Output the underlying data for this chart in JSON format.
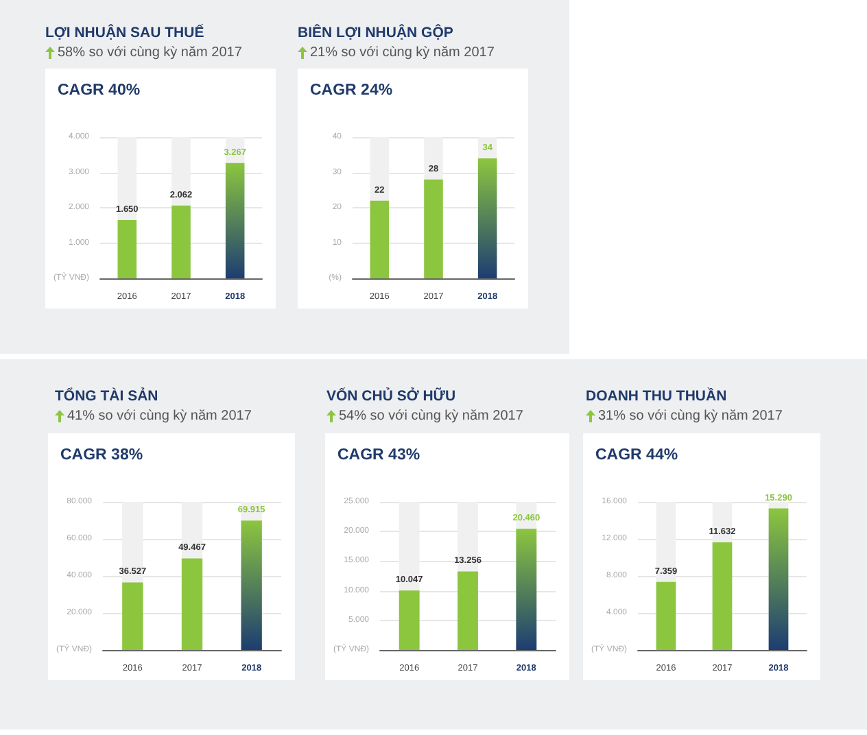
{
  "chart_data": [
    {
      "type": "bar",
      "title": "LỢI NHUẬN SAU THUẾ",
      "subtitle": "58% so với cùng kỳ năm 2017",
      "annotations": [
        "CAGR 40%"
      ],
      "categories": [
        "2016",
        "2017",
        "2018"
      ],
      "values": [
        1650,
        2062,
        3267
      ],
      "value_labels": [
        "1.650",
        "2.062",
        "3.267"
      ],
      "colors": [
        "#8cc63f",
        "#8cc63f",
        "#1d3d72"
      ],
      "ylim": [
        0,
        4000
      ],
      "yticks": [
        {
          "value": 0,
          "label": "(TỶ VNĐ)"
        },
        {
          "value": 1000,
          "label": "1.000"
        },
        {
          "value": 2000,
          "label": "2.000"
        },
        {
          "value": 3000,
          "label": "3.000"
        },
        {
          "value": 4000,
          "label": "4.000"
        }
      ],
      "grid": "y"
    },
    {
      "type": "bar",
      "title": "BIÊN LỢI NHUẬN GỘP",
      "subtitle": "21% so với cùng kỳ năm 2017",
      "annotations": [
        "CAGR 24%"
      ],
      "categories": [
        "2016",
        "2017",
        "2018"
      ],
      "values": [
        22,
        28,
        34
      ],
      "data_labels": true,
      "colors": [
        "#8cc63f",
        "#8cc63f",
        "#1d3d72"
      ],
      "ylim": [
        0,
        40
      ],
      "yticks": [
        {
          "value": 0,
          "label": "(%)"
        },
        10,
        20,
        30,
        40
      ],
      "grid": "y"
    },
    {
      "type": "bar",
      "title": "TỔNG TÀI SẢN",
      "subtitle": "41% so với cùng kỳ năm 2017",
      "annotations": [
        "CAGR 38%"
      ],
      "categories": [
        "2016",
        "2017",
        "2018"
      ],
      "values": [
        36527,
        49467,
        69915
      ],
      "value_labels": [
        "36.527",
        "49.467",
        "69.915"
      ],
      "colors": [
        "#8cc63f",
        "#8cc63f",
        "#1d3d72"
      ],
      "ylim": [
        0,
        80000
      ],
      "yticks": [
        {
          "value": 0,
          "label": "(TỶ VNĐ)"
        },
        {
          "value": 20000,
          "label": "20.000"
        },
        {
          "value": 40000,
          "label": "40.000"
        },
        {
          "value": 60000,
          "label": "60.000"
        },
        {
          "value": 80000,
          "label": "80.000"
        }
      ],
      "grid": "y"
    },
    {
      "type": "bar",
      "title": "VỐN CHỦ SỞ HỮU",
      "subtitle": "54% so với cùng kỳ năm 2017",
      "annotations": [
        "CAGR 43%"
      ],
      "categories": [
        "2016",
        "2017",
        "2018"
      ],
      "values": [
        10047,
        13256,
        20460
      ],
      "value_labels": [
        "10.047",
        "13.256",
        "20.460"
      ],
      "colors": [
        "#8cc63f",
        "#8cc63f",
        "#1d3d72"
      ],
      "ylim": [
        0,
        25000
      ],
      "yticks": [
        {
          "value": 0,
          "label": "(TỶ VNĐ)"
        },
        {
          "value": 5000,
          "label": "5.000"
        },
        {
          "value": 10000,
          "label": "10.000"
        },
        {
          "value": 15000,
          "label": "15.000"
        },
        {
          "value": 20000,
          "label": "20.000"
        },
        {
          "value": 25000,
          "label": "25.000"
        }
      ],
      "grid": "y"
    },
    {
      "type": "bar",
      "title": "DOANH THU THUẦN",
      "subtitle": "31% so với cùng kỳ năm 2017",
      "annotations": [
        "CAGR 44%"
      ],
      "categories": [
        "2016",
        "2017",
        "2018"
      ],
      "values": [
        7359,
        11632,
        15290
      ],
      "value_labels": [
        "7.359",
        "11.632",
        "15.290"
      ],
      "colors": [
        "#8cc63f",
        "#8cc63f",
        "#1d3d72"
      ],
      "ylim": [
        0,
        16000
      ],
      "yticks": [
        {
          "value": 0,
          "label": "(TỶ VNĐ)"
        },
        {
          "value": 4000,
          "label": "4.000"
        },
        {
          "value": 8000,
          "label": "8.000"
        },
        {
          "value": 12000,
          "label": "12.000"
        },
        {
          "value": 16000,
          "label": "16.000"
        }
      ],
      "grid": "y"
    }
  ]
}
